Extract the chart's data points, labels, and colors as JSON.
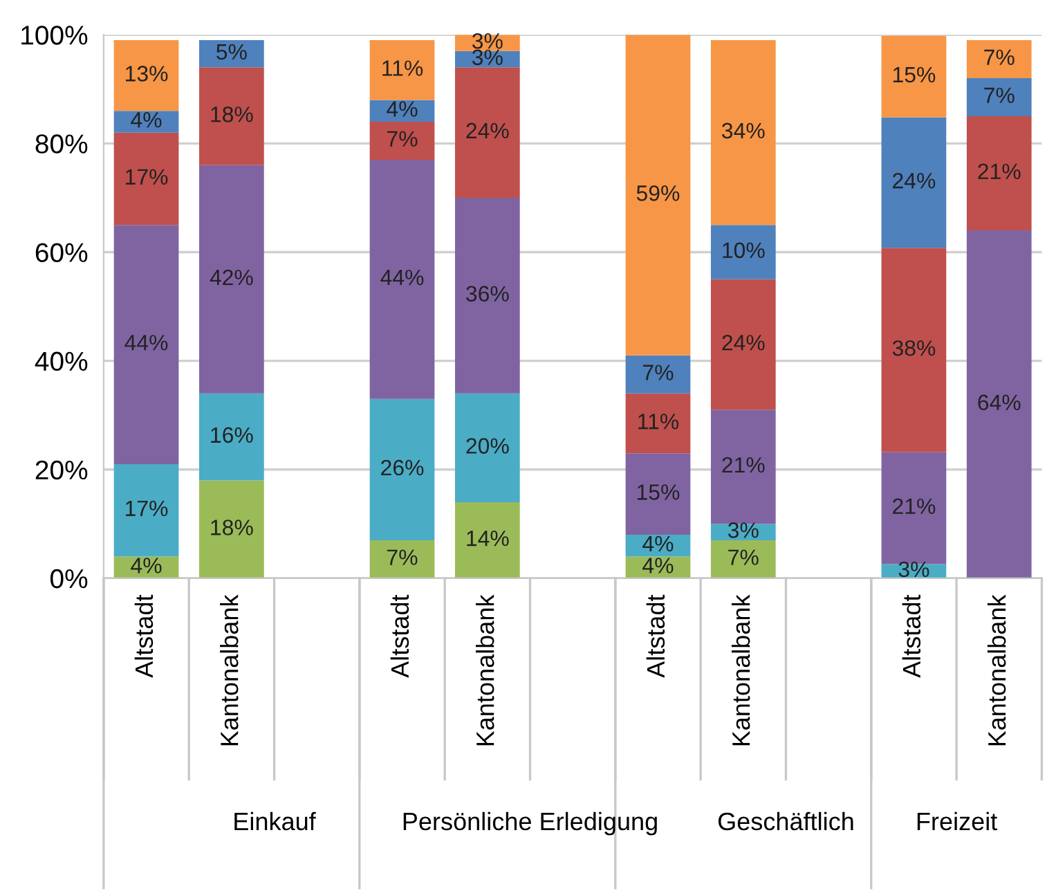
{
  "chart_data": {
    "type": "bar",
    "stacked": true,
    "grid": "y",
    "categories": [
      "Altstadt",
      "Kantonalbank",
      null,
      "Altstadt",
      "Kantonalbank",
      null,
      "Altstadt",
      "Kantonalbank",
      null,
      "Altstadt",
      "Kantonalbank"
    ],
    "annotations": [
      "Einkauf",
      "Persönliche Erledigung",
      "Geschäftlich",
      "Freizeit"
    ],
    "ylim": [
      0,
      100
    ],
    "yticks": [
      {
        "value": 0,
        "label": "0%"
      },
      {
        "value": 20,
        "label": "20%"
      },
      {
        "value": 40,
        "label": "40%"
      },
      {
        "value": 60,
        "label": "60%"
      },
      {
        "value": 80,
        "label": "80%"
      },
      {
        "value": 100,
        "label": "100%"
      }
    ],
    "series": [
      {
        "color": "#9bbb59",
        "values": [
          4,
          18,
          null,
          7,
          14,
          null,
          4,
          7,
          null,
          null,
          null
        ],
        "value_labels": [
          "4%",
          "18%",
          null,
          "7%",
          "14%",
          null,
          "4%",
          "7%",
          null,
          null,
          null
        ]
      },
      {
        "color": "#4bacc6",
        "values": [
          17,
          16,
          null,
          26,
          20,
          null,
          4,
          3,
          null,
          2.6,
          null
        ],
        "value_labels": [
          "17%",
          "16%",
          null,
          "26%",
          "20%",
          null,
          "4%",
          "3%",
          null,
          "3%",
          null
        ]
      },
      {
        "color": "#8064a2",
        "values": [
          44,
          42,
          null,
          44,
          36,
          null,
          15,
          21,
          null,
          20.6,
          64
        ],
        "value_labels": [
          "44%",
          "42%",
          null,
          "44%",
          "36%",
          null,
          "15%",
          "21%",
          null,
          "21%",
          "64%"
        ]
      },
      {
        "color": "#c0504d",
        "values": [
          17,
          18,
          null,
          7,
          24,
          null,
          11,
          24,
          null,
          37.6,
          21
        ],
        "value_labels": [
          "17%",
          "18%",
          null,
          "7%",
          "24%",
          null,
          "11%",
          "24%",
          null,
          "38%",
          "21%"
        ]
      },
      {
        "color": "#4f81bd",
        "values": [
          4,
          5,
          null,
          4,
          3,
          null,
          7,
          10,
          null,
          24,
          7
        ],
        "value_labels": [
          "4%",
          "5%",
          null,
          "4%",
          "3%",
          null,
          "7%",
          "10%",
          null,
          "24%",
          "7%"
        ]
      },
      {
        "color": "#f79646",
        "values": [
          13,
          null,
          null,
          11,
          3,
          null,
          59,
          34,
          null,
          15,
          7
        ],
        "value_labels": [
          "13%",
          null,
          null,
          "11%",
          "3%",
          null,
          "59%",
          "34%",
          null,
          "15%",
          "7%"
        ]
      }
    ]
  }
}
